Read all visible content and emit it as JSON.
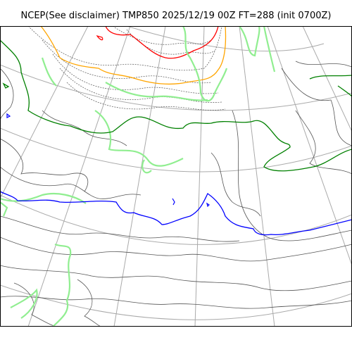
{
  "map": {
    "title": "NCEP(See disclaimer) TMP850 2025/12/19 00Z FT=288 (init 0700Z)",
    "projection": "polar stereographic",
    "field": "850 hPa temperature contours",
    "colors": {
      "background": "#ffffff",
      "frame": "#000000",
      "graticule": "#aaaaaa",
      "coastline": "#333333",
      "contour": "#555555",
      "isotherm_minus_3": "#90ee90",
      "isotherm_0": "#008000",
      "isotherm_6": "#0000ff",
      "isotherm_minus_6": "#ffa500",
      "isotherm_minus_12": "#ff0000"
    },
    "highlighted_contours": [
      {
        "key": "isotherm_minus_12",
        "color_name": "red"
      },
      {
        "key": "isotherm_minus_6",
        "color_name": "orange"
      },
      {
        "key": "isotherm_minus_3",
        "color_name": "light-green"
      },
      {
        "key": "isotherm_0",
        "color_name": "green"
      },
      {
        "key": "isotherm_6",
        "color_name": "blue"
      }
    ]
  }
}
